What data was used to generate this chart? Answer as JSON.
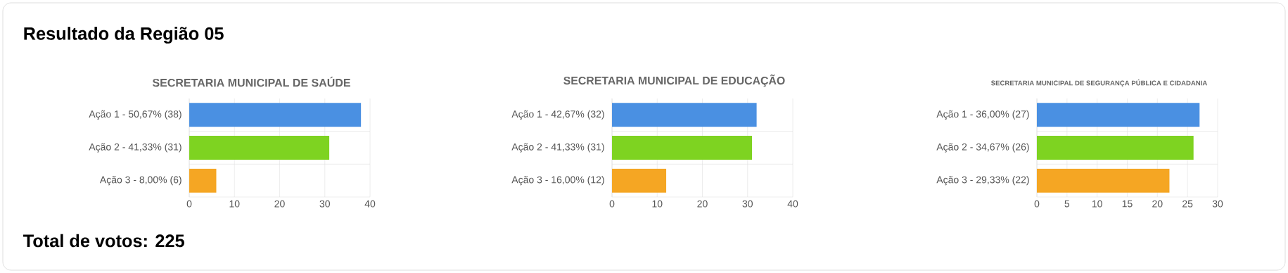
{
  "chart_data": [
    {
      "type": "bar",
      "orientation": "horizontal",
      "title": "SECRETARIA MUNICIPAL DE SAÚDE",
      "categories": [
        "Ação 1 - 50,67% (38)",
        "Ação 2 - 41,33% (31)",
        "Ação 3 - 8,00% (6)"
      ],
      "values": [
        38,
        31,
        6
      ],
      "colors": [
        "#4a90e2",
        "#7ed321",
        "#f5a623"
      ],
      "xlim": [
        0,
        40
      ],
      "xticks": [
        0,
        10,
        20,
        30,
        40
      ],
      "grid": true,
      "annotations": [
        "Resultado da Região 05",
        "Total de votos: 225"
      ]
    },
    {
      "type": "bar",
      "orientation": "horizontal",
      "title": "SECRETARIA MUNICIPAL DE EDUCAÇÃO",
      "categories": [
        "Ação 1 - 42,67% (32)",
        "Ação 2 - 41,33% (31)",
        "Ação 3 - 16,00% (12)"
      ],
      "values": [
        32,
        31,
        12
      ],
      "colors": [
        "#4a90e2",
        "#7ed321",
        "#f5a623"
      ],
      "xlim": [
        0,
        40
      ],
      "xticks": [
        0,
        10,
        20,
        30,
        40
      ],
      "grid": true
    },
    {
      "type": "bar",
      "orientation": "horizontal",
      "title": "SECRETARIA MUNICIPAL DE SEGURANÇA PÚBLICA E CIDADANIA",
      "categories": [
        "Ação 1 - 36,00% (27)",
        "Ação 2 - 34,67% (26)",
        "Ação 3 - 29,33% (22)"
      ],
      "values": [
        27,
        26,
        22
      ],
      "colors": [
        "#4a90e2",
        "#7ed321",
        "#f5a623"
      ],
      "xlim": [
        0,
        30
      ],
      "xticks": [
        0,
        5,
        10,
        15,
        20,
        25,
        30
      ],
      "grid": true
    }
  ]
}
